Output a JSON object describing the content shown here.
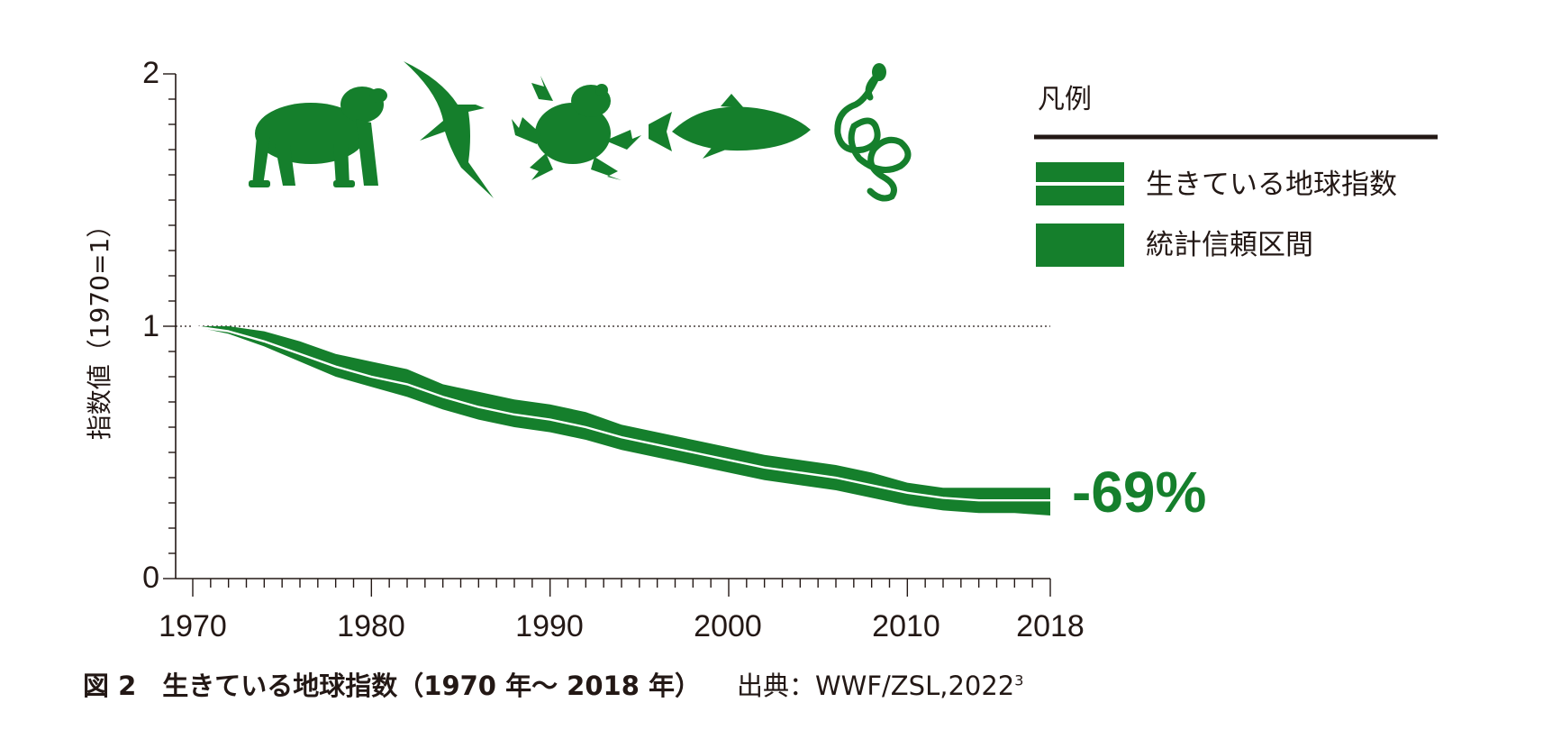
{
  "chart_data": {
    "type": "line",
    "ylabel": "指数値（1970=1）",
    "ylim": [
      0,
      2
    ],
    "xlim": [
      1970,
      2018
    ],
    "y_ticks": [
      "0",
      "1",
      "2"
    ],
    "x_ticks": [
      "1970",
      "1980",
      "1990",
      "2000",
      "2010",
      "2018"
    ],
    "reference_line": 1,
    "series": [
      {
        "name": "生きている地球指数",
        "x": [
          1970,
          1972,
          1974,
          1976,
          1978,
          1980,
          1982,
          1984,
          1986,
          1988,
          1990,
          1992,
          1994,
          1996,
          1998,
          2000,
          2002,
          2004,
          2006,
          2008,
          2010,
          2012,
          2014,
          2016,
          2018
        ],
        "y": [
          1.0,
          0.98,
          0.94,
          0.89,
          0.84,
          0.8,
          0.77,
          0.72,
          0.68,
          0.65,
          0.63,
          0.6,
          0.56,
          0.53,
          0.5,
          0.47,
          0.44,
          0.42,
          0.4,
          0.37,
          0.34,
          0.32,
          0.31,
          0.31,
          0.31
        ],
        "lower": [
          1.0,
          0.97,
          0.92,
          0.86,
          0.8,
          0.76,
          0.72,
          0.67,
          0.63,
          0.6,
          0.58,
          0.55,
          0.51,
          0.48,
          0.45,
          0.42,
          0.39,
          0.37,
          0.35,
          0.32,
          0.29,
          0.27,
          0.26,
          0.26,
          0.25
        ],
        "upper": [
          1.0,
          1.0,
          0.98,
          0.94,
          0.89,
          0.86,
          0.83,
          0.77,
          0.74,
          0.71,
          0.69,
          0.66,
          0.61,
          0.58,
          0.55,
          0.52,
          0.49,
          0.47,
          0.45,
          0.42,
          0.38,
          0.36,
          0.36,
          0.36,
          0.36
        ]
      }
    ],
    "annotation": "-69%",
    "legend": {
      "title": "凡例",
      "placement": "top-right",
      "items": [
        "生きている地球指数",
        "統計信頼区間"
      ]
    }
  },
  "colors": {
    "band": "#157f2c",
    "line": "#ffffff",
    "axis": "#231815",
    "text": "#231815"
  },
  "icons": [
    "gorilla-icon",
    "bird-icon",
    "frog-icon",
    "fish-icon",
    "snake-icon"
  ],
  "caption": {
    "figure": "図 2　生きている地球指数（1970 年〜 2018 年）",
    "source": "出典：WWF/ZSL,2022",
    "source_sup": "3"
  }
}
